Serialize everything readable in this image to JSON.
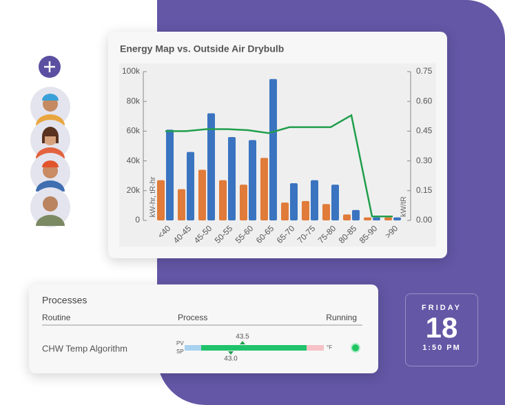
{
  "chart_data": {
    "type": "bar",
    "title": "Energy Map vs. Outside Air Drybulb",
    "categories": [
      "<40",
      "40-45",
      "45-50",
      "50-55",
      "55-60",
      "60-65",
      "65-70",
      "70-75",
      "75-80",
      "80-85",
      "85-90",
      ">90"
    ],
    "series": [
      {
        "name": "tR-hr",
        "color": "#e07b39",
        "values": [
          27000,
          21000,
          34000,
          27000,
          24000,
          42000,
          12000,
          13000,
          11000,
          4000,
          2000,
          2000
        ]
      },
      {
        "name": "kW-hr",
        "color": "#3a74c0",
        "values": [
          61000,
          46000,
          72000,
          56000,
          54000,
          95000,
          25000,
          27000,
          24000,
          7000,
          2000,
          2000
        ]
      },
      {
        "name": "kW/tR",
        "type": "line",
        "axis": "y2",
        "color": "#1f9e4c",
        "values": [
          0.45,
          0.45,
          0.46,
          0.46,
          0.455,
          0.44,
          0.47,
          0.47,
          0.47,
          0.53,
          0.02,
          0.02
        ]
      }
    ],
    "ylabel": "kW-hr, tR-hr",
    "y2label": "kW/tR",
    "ylim": [
      0,
      100000
    ],
    "yticks": [
      0,
      {
        "value": 20000,
        "label": "20k"
      },
      {
        "value": 40000,
        "label": "40k"
      },
      {
        "value": 60000,
        "label": "60k"
      },
      {
        "value": 80000,
        "label": "80k"
      },
      {
        "value": 100000,
        "label": "100k"
      }
    ],
    "y2lim": [
      0,
      0.75
    ],
    "y2ticks": [
      {
        "value": 0,
        "label": "0.00"
      },
      0.15,
      {
        "value": 0.3,
        "label": "0.30"
      },
      0.45,
      {
        "value": 0.6,
        "label": "0.60"
      },
      0.75
    ]
  },
  "processes": {
    "title": "Processes",
    "headers": [
      "Routine",
      "Process",
      "Running"
    ],
    "row": {
      "routine": "CHW Temp Algorithm",
      "pv": "PV",
      "sp": "SP",
      "pv_value": "43.5",
      "sp_value": "43.0",
      "unit": "°F"
    }
  },
  "clock": {
    "weekday": "FRIDAY",
    "day": "18",
    "time": "1:50 PM"
  }
}
